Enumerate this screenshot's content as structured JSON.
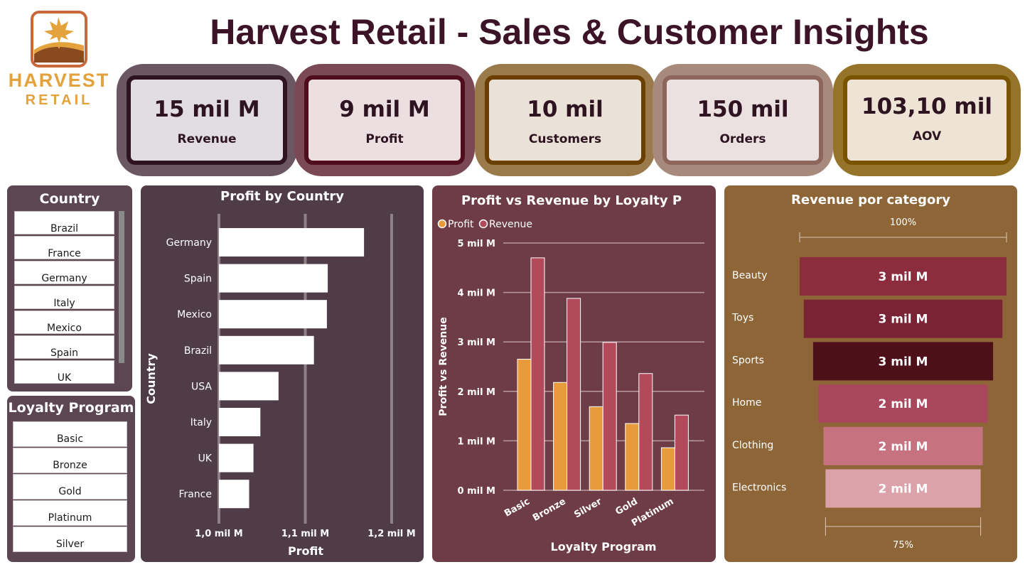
{
  "header": {
    "title": "Harvest Retail - Sales & Customer Insights",
    "logo_line1": "HARVEST",
    "logo_line2": "RETAIL"
  },
  "colors": {
    "title": "#3d1427",
    "brand_orange": "#e3a23b",
    "panel_country": "#4f3c47",
    "panel_loyalty": "#6e3c46",
    "panel_category": "#8e6537"
  },
  "kpis": [
    {
      "value": "15 mil M",
      "label": "Revenue"
    },
    {
      "value": "9 mil M",
      "label": "Profit"
    },
    {
      "value": "10 mil",
      "label": "Customers"
    },
    {
      "value": "150 mil",
      "label": "Orders"
    },
    {
      "value": "103,10 mil",
      "label": "AOV"
    }
  ],
  "slicers": {
    "country": {
      "title": "Country",
      "items": [
        "Brazil",
        "France",
        "Germany",
        "Italy",
        "Mexico",
        "Spain",
        "UK"
      ]
    },
    "loyalty": {
      "title": "Loyalty Program",
      "items": [
        "Basic",
        "Bronze",
        "Gold",
        "Platinum",
        "Silver"
      ]
    }
  },
  "chart_data": [
    {
      "type": "bar",
      "orientation": "horizontal",
      "title": "Profit by Country",
      "xlabel": "Profit",
      "ylabel": "Country",
      "categories": [
        "Germany",
        "Spain",
        "Mexico",
        "Brazil",
        "USA",
        "Italy",
        "UK",
        "France"
      ],
      "values": [
        1.168,
        1.126,
        1.125,
        1.11,
        1.069,
        1.048,
        1.04,
        1.035
      ],
      "unit": "mil M",
      "xlim": [
        1.0,
        1.2
      ],
      "tick_labels": [
        "1,0 mil M",
        "1,1 mil M",
        "1,2 mil M"
      ],
      "grid": true
    },
    {
      "type": "bar",
      "title": "Profit vs Revenue by Loyalty P",
      "xlabel": "Loyalty Program",
      "ylabel": "Profit vs Revenue",
      "categories": [
        "Basic",
        "Bronze",
        "Silver",
        "Gold",
        "Platinum"
      ],
      "series": [
        {
          "name": "Profit",
          "color": "#e89b3c",
          "values": [
            2.65,
            2.18,
            1.69,
            1.35,
            0.86
          ]
        },
        {
          "name": "Revenue",
          "color": "#b34a5c",
          "values": [
            4.7,
            3.88,
            2.99,
            2.36,
            1.52
          ]
        }
      ],
      "ylim": [
        0,
        5
      ],
      "tick_labels": [
        "0 mil M",
        "1 mil M",
        "2 mil M",
        "3 mil M",
        "4 mil M",
        "5 mil M"
      ],
      "legend": "top-left",
      "grid": true
    },
    {
      "type": "bar",
      "subtype": "funnel",
      "title": "Revenue por category",
      "categories": [
        "Beauty",
        "Toys",
        "Sports",
        "Home",
        "Clothing",
        "Electronics"
      ],
      "values": [
        1.0,
        0.96,
        0.87,
        0.82,
        0.77,
        0.75
      ],
      "data_labels": [
        "3 mil M",
        "3 mil M",
        "3 mil M",
        "2 mil M",
        "2 mil M",
        "2 mil M"
      ],
      "colors": [
        "#8c2d3e",
        "#7a2334",
        "#4d1018",
        "#a9475c",
        "#c7727f",
        "#dba2aa"
      ],
      "top_label": "100%",
      "bottom_label": "75%"
    }
  ]
}
